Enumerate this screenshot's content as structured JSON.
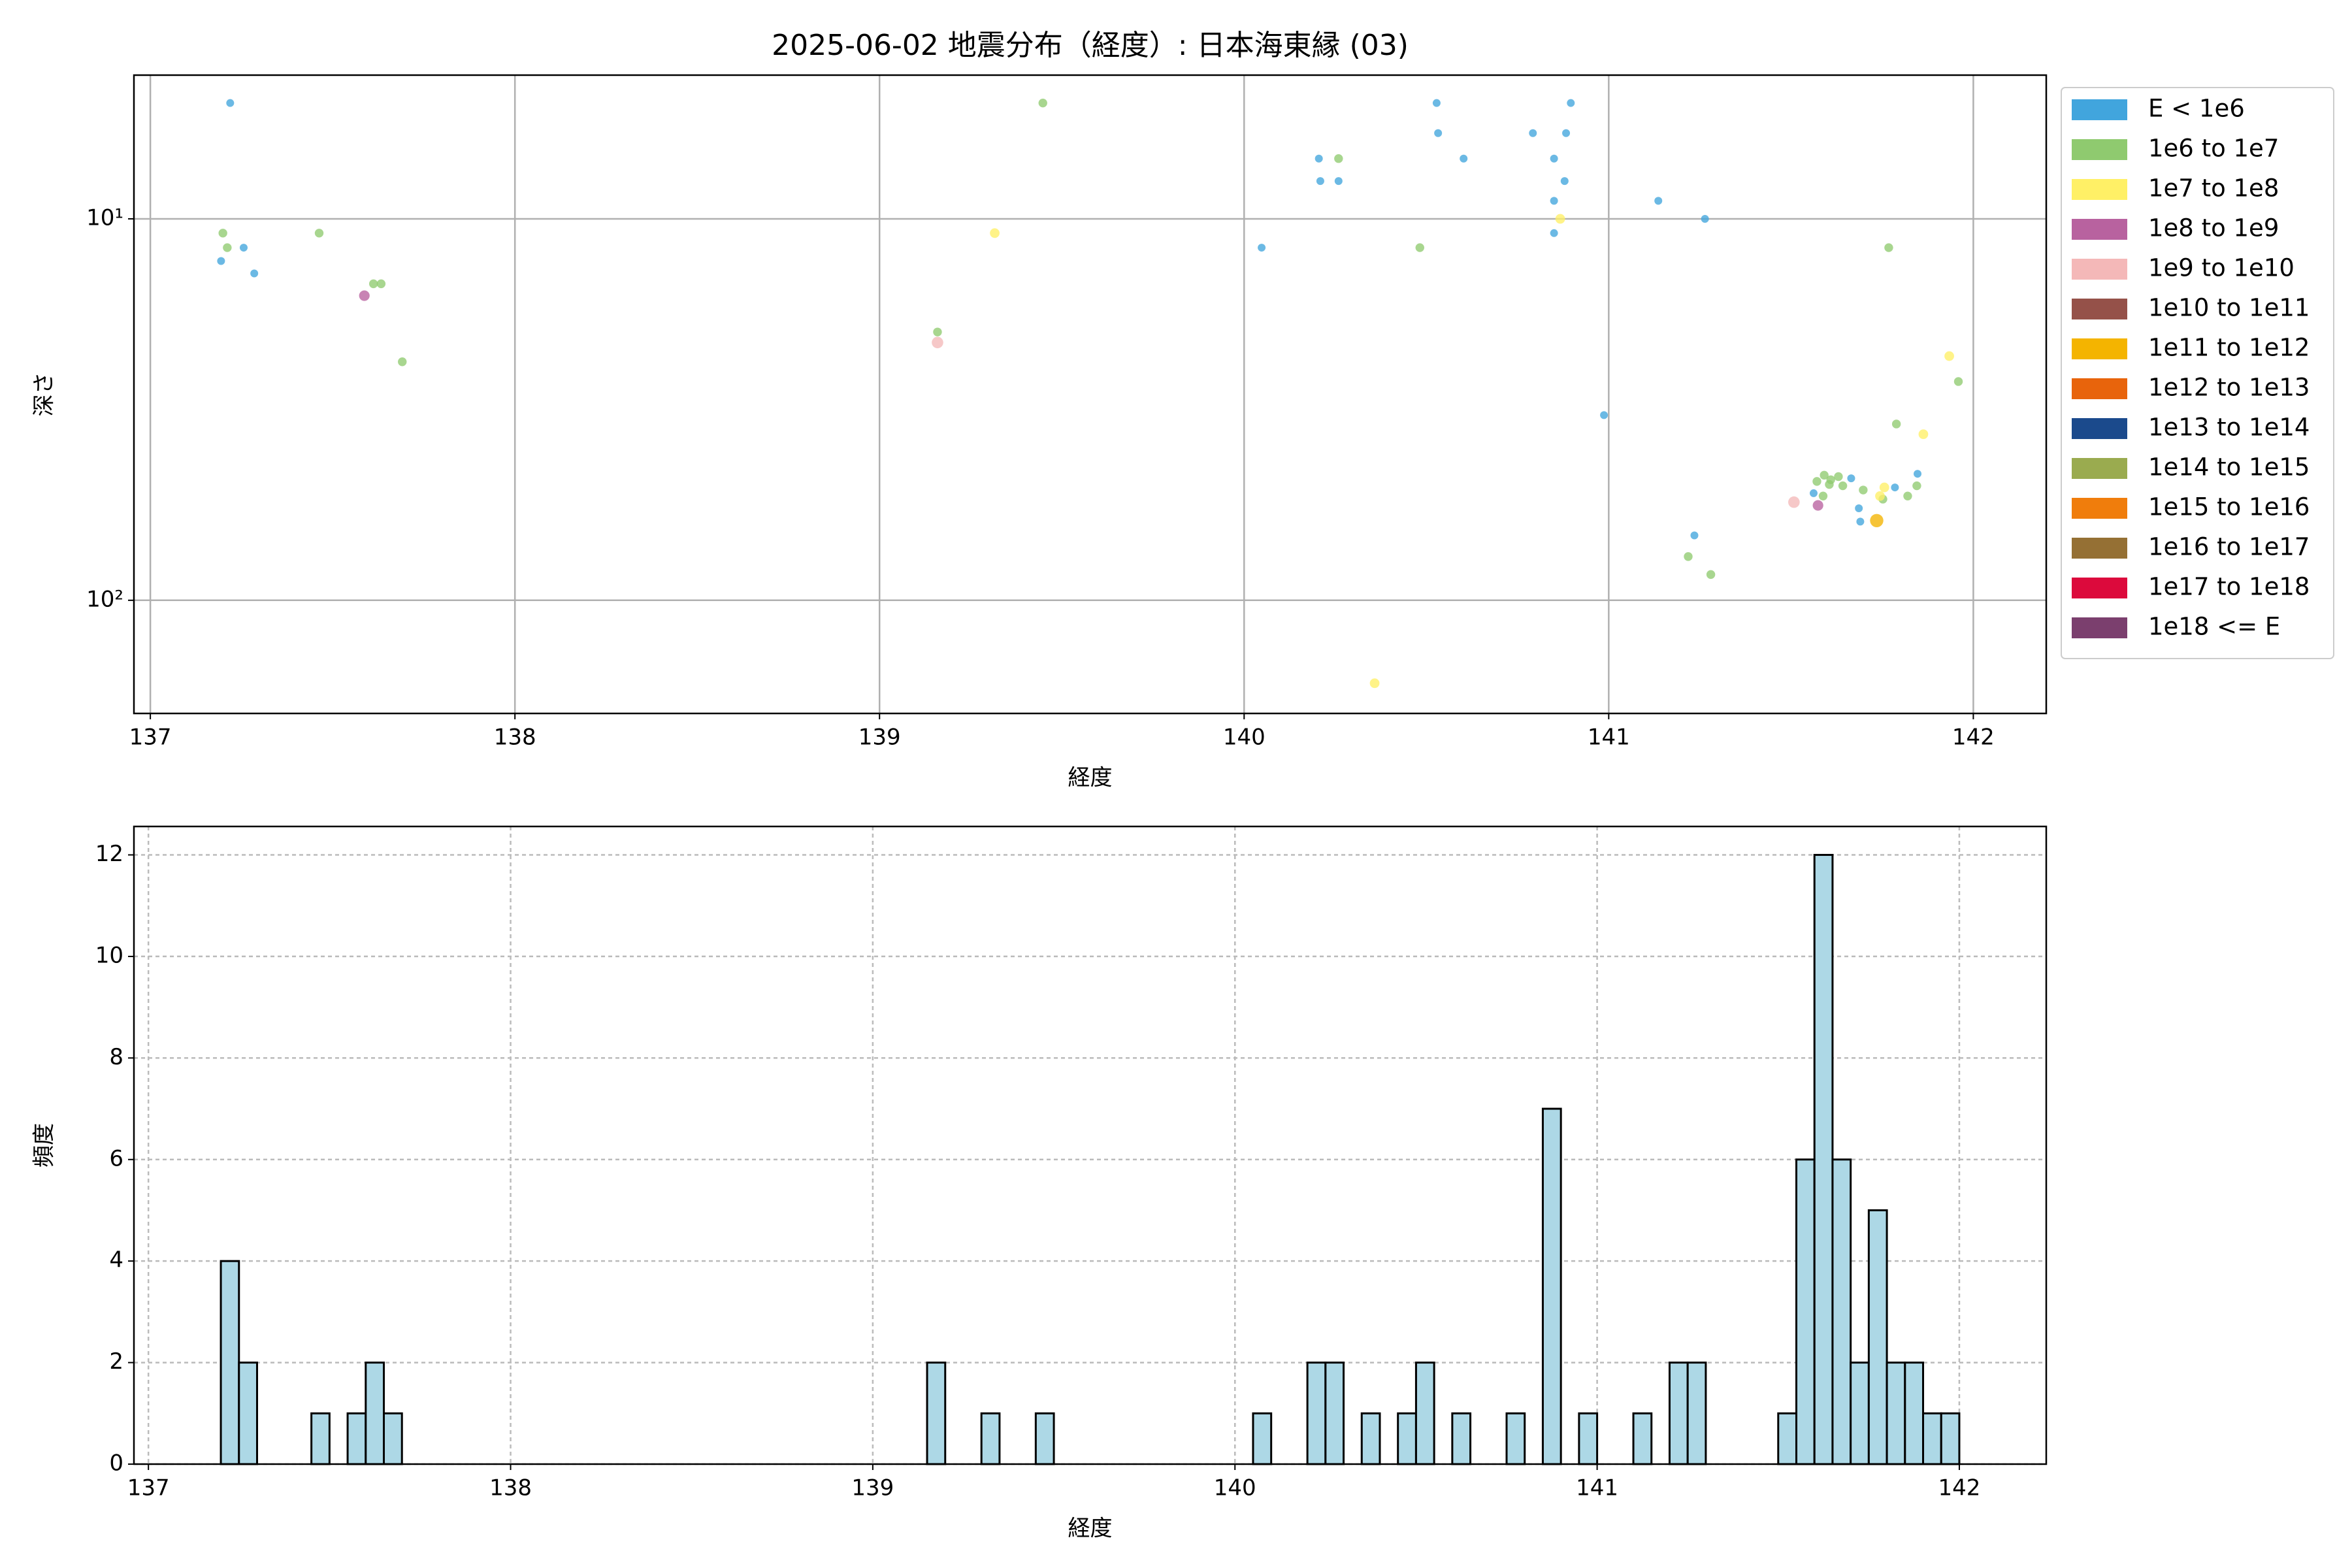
{
  "chart_data": [
    {
      "type": "scatter",
      "title": "2025-06-02 地震分布（経度）: 日本海東縁 (03)",
      "xlabel": "経度",
      "ylabel": "深さ",
      "xlim": [
        136.955,
        142.2
      ],
      "xticks": [
        137,
        138,
        139,
        140,
        141,
        142
      ],
      "ylim": [
        4.2,
        198
      ],
      "ylog": true,
      "yinvert": true,
      "yticks": [
        {
          "value": 10,
          "label": "10¹"
        },
        {
          "value": 100,
          "label": "10²"
        }
      ],
      "grid": true,
      "grid_linestyle": "solid",
      "legend": "outside right",
      "series": [
        {
          "name": "E < 1e6",
          "color": "#41a5dd",
          "x": [
            137.219,
            137.194,
            137.256,
            137.285,
            140.048,
            140.205,
            140.209,
            140.259,
            140.528,
            140.532,
            140.602,
            140.792,
            140.85,
            140.85,
            140.85,
            140.879,
            140.883,
            140.896,
            140.987,
            141.136,
            141.264,
            141.235,
            141.562,
            141.665,
            141.686,
            141.69,
            141.785,
            141.847
          ],
          "values": [
            4.97,
            12.9,
            11.9,
            13.9,
            11.9,
            6.95,
            7.96,
            7.96,
            4.97,
            5.96,
            6.95,
            5.96,
            6.95,
            8.97,
            10.9,
            7.96,
            5.96,
            4.97,
            32.7,
            8.97,
            10.0,
            67.6,
            52.4,
            47.9,
            57.4,
            62.2,
            50.6,
            46.6
          ]
        },
        {
          "name": "1e6 to 1e7",
          "color": "#8fca6f",
          "x": [
            137.199,
            137.211,
            137.463,
            137.612,
            137.633,
            137.691,
            139.159,
            139.448,
            140.259,
            140.482,
            141.768,
            141.218,
            141.28,
            141.789,
            141.959,
            141.571,
            141.591,
            141.609,
            141.63,
            141.642,
            141.605,
            141.588,
            141.698,
            141.752,
            141.82,
            141.845
          ],
          "values": [
            10.9,
            11.9,
            10.9,
            14.8,
            14.8,
            23.7,
            19.8,
            4.97,
            6.95,
            11.9,
            11.9,
            76.8,
            85.6,
            34.5,
            26.7,
            48.8,
            47.0,
            48.3,
            47.4,
            50.1,
            49.7,
            53.3,
            51.4,
            54.3,
            53.3,
            50.1
          ]
        },
        {
          "name": "1e7 to 1e8",
          "color": "#fff066",
          "x": [
            139.316,
            140.867,
            140.358,
            141.934,
            141.863,
            141.756,
            141.744
          ],
          "values": [
            10.9,
            10.0,
            165,
            22.9,
            36.7,
            50.6,
            53.3
          ]
        },
        {
          "name": "1e8 to 1e9",
          "color": "#b8629f",
          "x": [
            137.587,
            141.574
          ],
          "values": [
            15.9,
            56.4
          ]
        },
        {
          "name": "1e9 to 1e10",
          "color": "#f4b8b8",
          "x": [
            139.159,
            141.508
          ],
          "values": [
            21.1,
            55.3
          ]
        },
        {
          "name": "1e10 to 1e11",
          "color": "#955149",
          "x": [],
          "values": []
        },
        {
          "name": "1e11 to 1e12",
          "color": "#f4b400",
          "x": [
            141.735
          ],
          "values": [
            61.8
          ]
        },
        {
          "name": "1e12 to 1e13",
          "color": "#e8640c",
          "x": [],
          "values": []
        },
        {
          "name": "1e13 to 1e14",
          "color": "#1b4a8c",
          "x": [],
          "values": []
        },
        {
          "name": "1e14 to 1e15",
          "color": "#9aab4f",
          "x": [],
          "values": []
        },
        {
          "name": "1e15 to 1e16",
          "color": "#f07d0c",
          "x": [],
          "values": []
        },
        {
          "name": "1e16 to 1e17",
          "color": "#957034",
          "x": [],
          "values": []
        },
        {
          "name": "1e17 to 1e18",
          "color": "#dc0a3c",
          "x": [],
          "values": []
        },
        {
          "name": "1e18 <= E",
          "color": "#7b3f6e",
          "x": [],
          "values": []
        }
      ]
    },
    {
      "type": "histogram",
      "xlabel": "経度",
      "ylabel": "頻度",
      "color": "#add8e6",
      "edgecolor": "#000000",
      "xlim": [
        136.96,
        142.24
      ],
      "xticks": [
        137,
        138,
        139,
        140,
        141,
        142
      ],
      "ylim": [
        0,
        12.56
      ],
      "yticks": [
        0,
        2,
        4,
        6,
        8,
        10,
        12
      ],
      "grid": true,
      "grid_linestyle": "dashed",
      "bins": [
        137.2,
        137.25,
        137.3,
        137.35,
        137.4,
        137.45,
        137.5,
        137.55,
        137.6,
        137.65,
        137.7,
        137.75,
        137.8,
        137.85,
        137.9,
        137.95,
        138,
        138.05,
        138.1,
        138.15,
        138.2,
        138.25,
        138.3,
        138.35,
        138.4,
        138.45,
        138.5,
        138.55,
        138.6,
        138.65,
        138.7,
        138.75,
        138.8,
        138.85,
        138.9,
        138.95,
        139,
        139.05,
        139.1,
        139.15,
        139.2,
        139.25,
        139.3,
        139.35,
        139.4,
        139.45,
        139.5,
        139.55,
        139.6,
        139.65,
        139.7,
        139.75,
        139.8,
        139.85,
        139.9,
        139.95,
        140,
        140.05,
        140.1,
        140.15,
        140.2,
        140.25,
        140.3,
        140.35,
        140.4,
        140.45,
        140.5,
        140.55,
        140.6,
        140.65,
        140.7,
        140.75,
        140.8,
        140.85,
        140.9,
        140.95,
        141,
        141.05,
        141.1,
        141.15,
        141.2,
        141.25,
        141.3,
        141.35,
        141.4,
        141.45,
        141.5,
        141.55,
        141.6,
        141.65,
        141.7,
        141.75,
        141.8,
        141.85,
        141.9,
        141.95,
        142
      ],
      "values": [
        4,
        2,
        0,
        0,
        0,
        1,
        0,
        1,
        2,
        1,
        0,
        0,
        0,
        0,
        0,
        0,
        0,
        0,
        0,
        0,
        0,
        0,
        0,
        0,
        0,
        0,
        0,
        0,
        0,
        0,
        0,
        0,
        0,
        0,
        0,
        0,
        0,
        0,
        0,
        2,
        0,
        0,
        1,
        0,
        0,
        1,
        0,
        0,
        0,
        0,
        0,
        0,
        0,
        0,
        0,
        0,
        0,
        1,
        0,
        0,
        2,
        2,
        0,
        1,
        0,
        1,
        2,
        0,
        1,
        0,
        0,
        1,
        0,
        7,
        0,
        1,
        0,
        0,
        1,
        0,
        2,
        2,
        0,
        0,
        0,
        0,
        1,
        6,
        12,
        6,
        2,
        5,
        2,
        2,
        1,
        1
      ]
    }
  ]
}
